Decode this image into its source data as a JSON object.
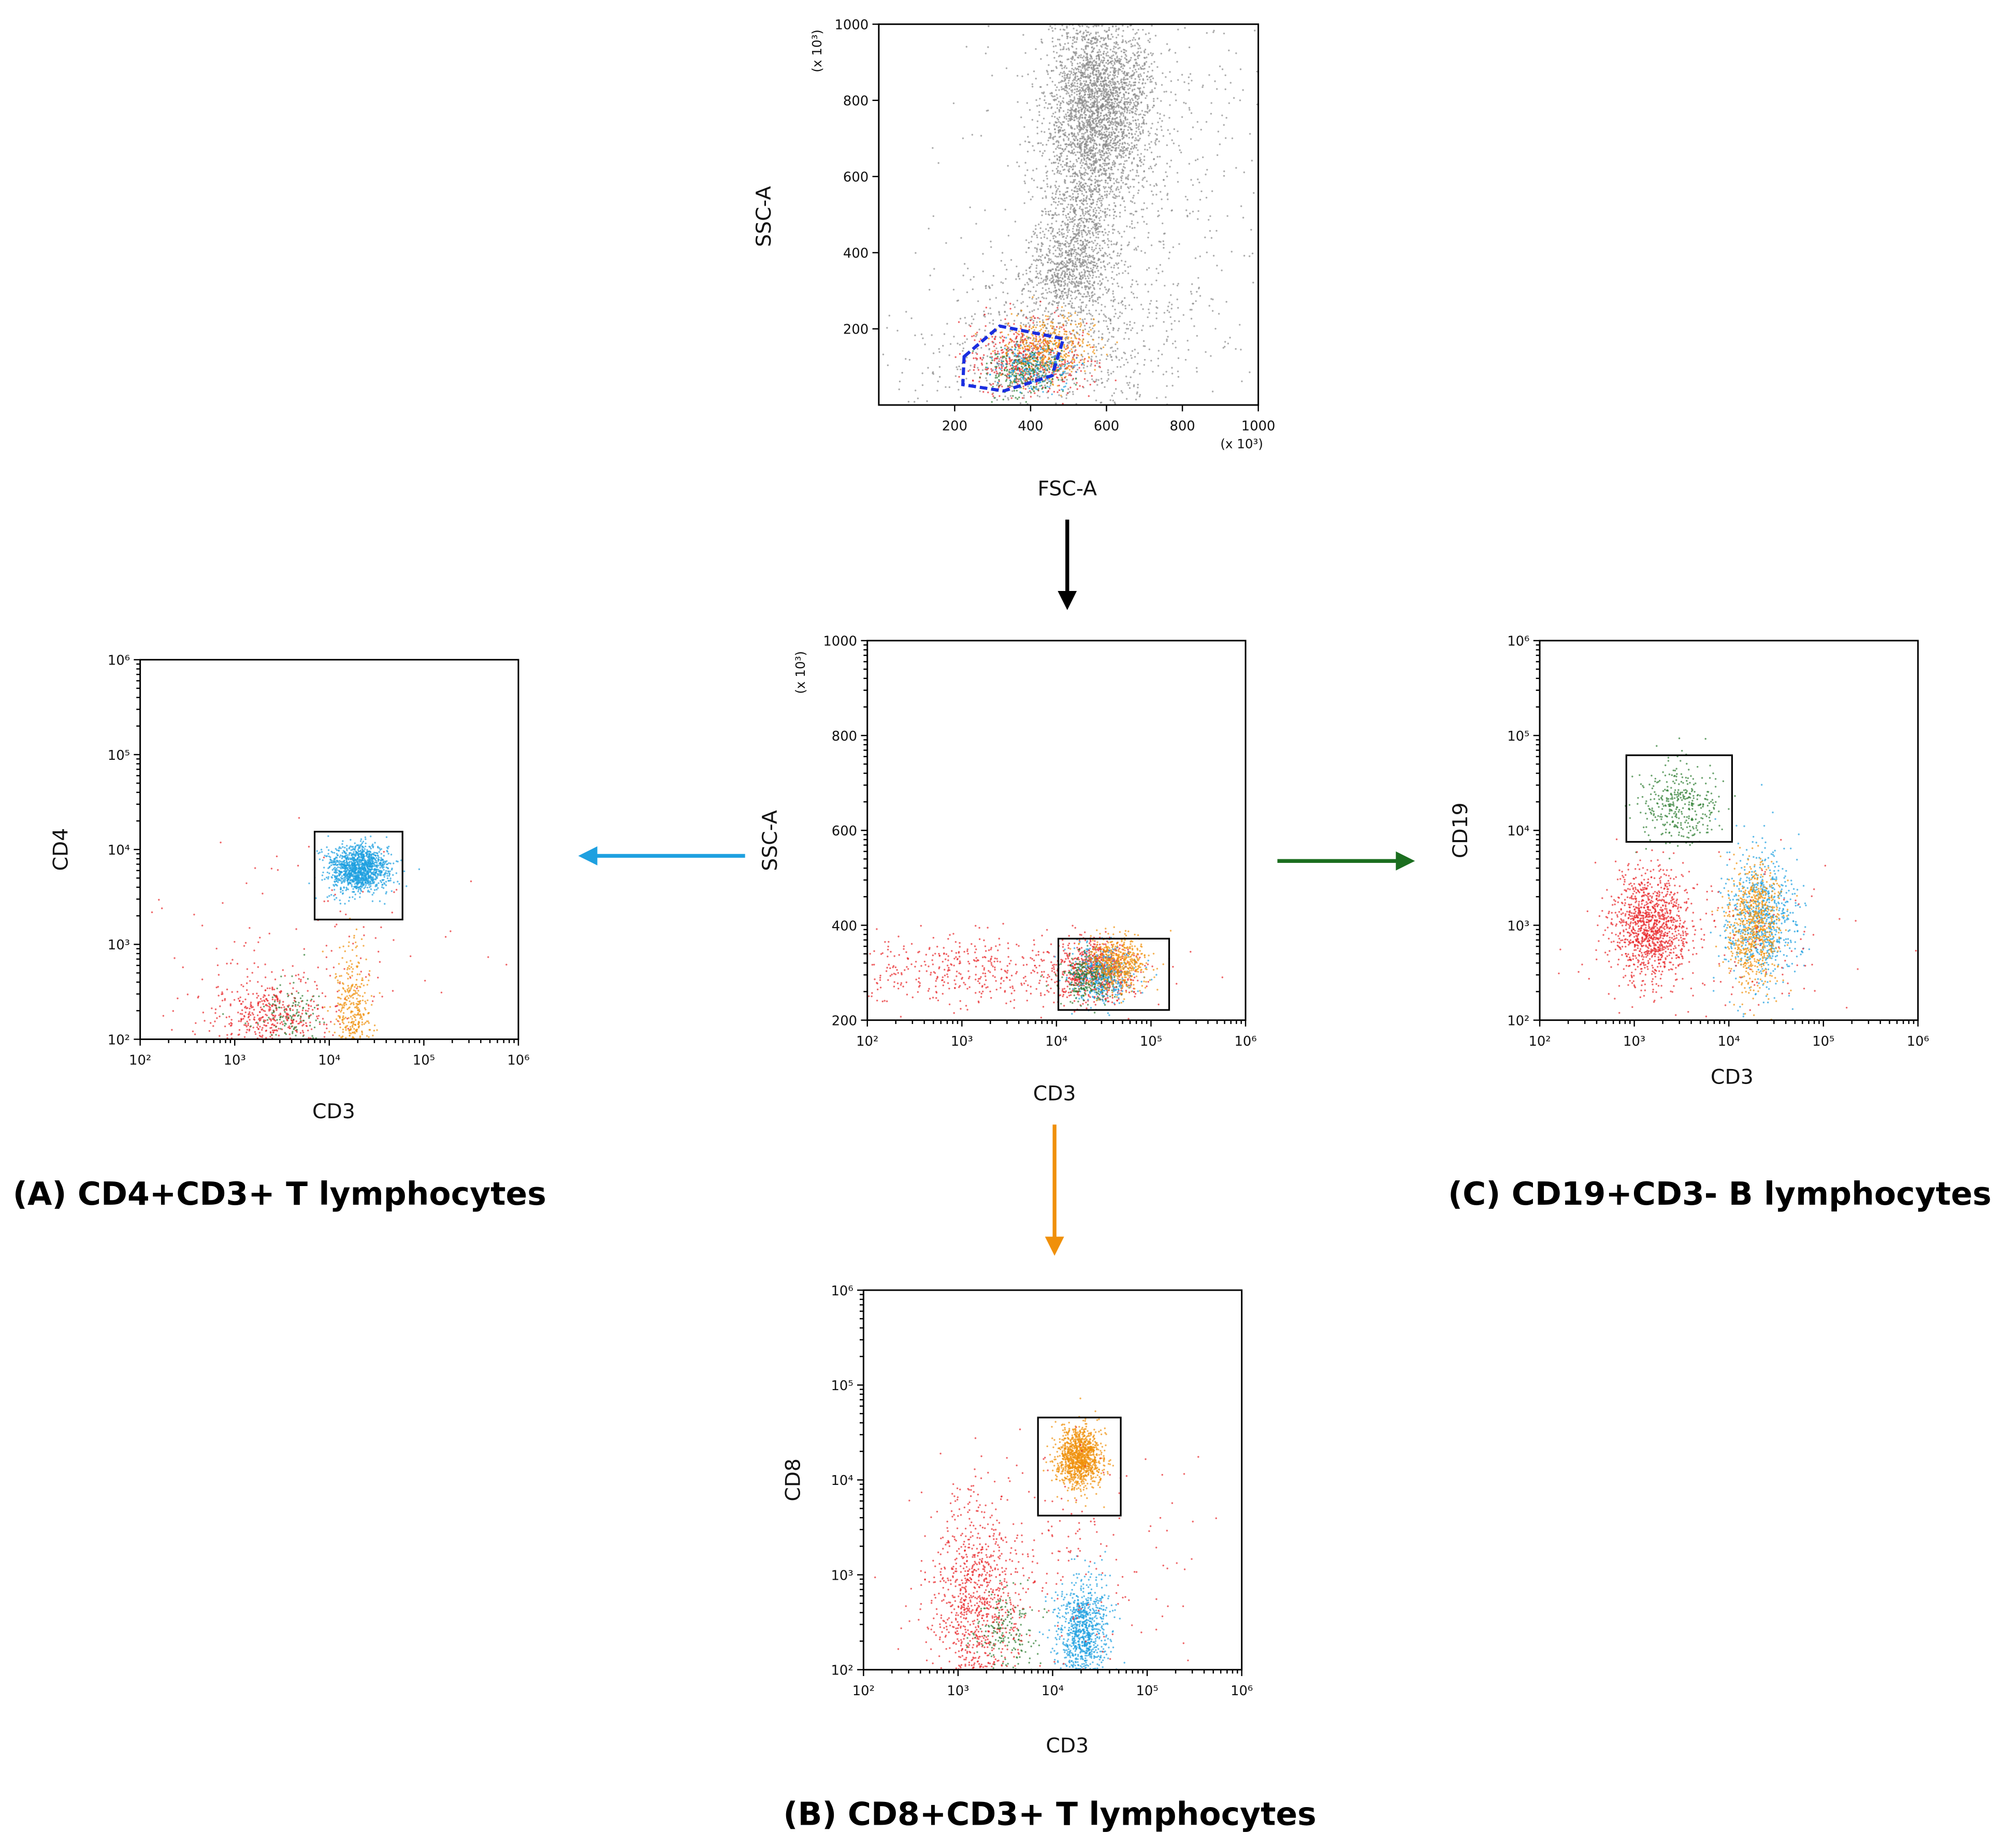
{
  "panels": [
    {
      "id": "gate",
      "x_label": "FSC-A",
      "y_label": "SSC-A",
      "x_scale_note": "(x 10³)",
      "y_scale_note": "(x 10³)",
      "x_ticks": [
        "200",
        "400",
        "600",
        "800",
        "1000"
      ],
      "y_ticks": [
        "200",
        "400",
        "600",
        "800",
        "1000"
      ]
    },
    {
      "id": "cd3",
      "x_label": "CD3",
      "y_label": "SSC-A",
      "y_scale_note": "(x 10³)",
      "x_ticks": [
        "10²",
        "10³",
        "10⁴",
        "10⁵",
        "10⁶"
      ],
      "y_ticks": [
        "200",
        "400",
        "600",
        "800",
        "1000"
      ]
    },
    {
      "id": "a",
      "x_label": "CD3",
      "y_label": "CD4",
      "title": "(A)   CD4+CD3+ T lymphocytes",
      "x_ticks": [
        "10²",
        "10³",
        "10⁴",
        "10⁵",
        "10⁶"
      ],
      "y_ticks": [
        "10²",
        "10³",
        "10⁴",
        "10⁵",
        "10⁶"
      ]
    },
    {
      "id": "c",
      "x_label": "CD3",
      "y_label": "CD19",
      "title": "(C)   CD19+CD3- B lymphocytes",
      "x_ticks": [
        "10²",
        "10³",
        "10⁴",
        "10⁵",
        "10⁶"
      ],
      "y_ticks": [
        "10²",
        "10³",
        "10⁴",
        "10⁵",
        "10⁶"
      ]
    },
    {
      "id": "b",
      "x_label": "CD3",
      "y_label": "CD8",
      "title": "(B)   CD8+CD3+ T lymphocytes",
      "x_ticks": [
        "10²",
        "10³",
        "10⁴",
        "10⁵",
        "10⁶"
      ],
      "y_ticks": [
        "10²",
        "10³",
        "10⁴",
        "10⁵",
        "10⁶"
      ]
    }
  ]
}
